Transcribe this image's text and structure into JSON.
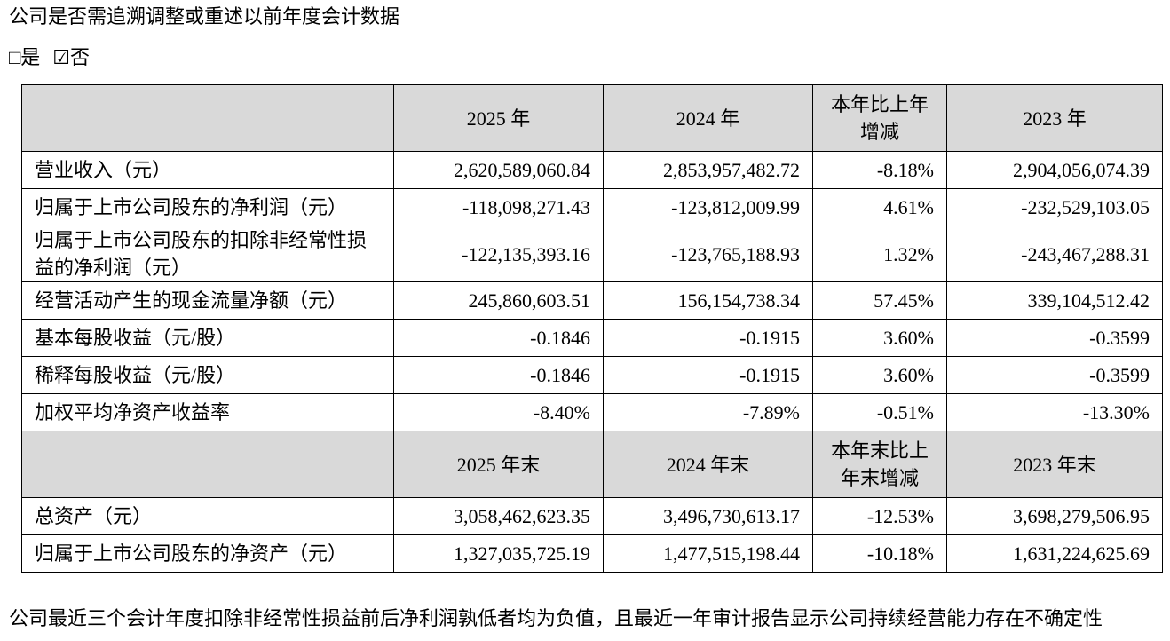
{
  "intro": "公司是否需追溯调整或重述以前年度会计数据",
  "options": [
    "□是",
    "☑否"
  ],
  "table": {
    "sections": [
      {
        "header": [
          "2025 年",
          "2024 年",
          "本年比上年增减",
          "2023 年"
        ],
        "rows": [
          {
            "label": "营业收入（元）",
            "values": [
              "2,620,589,060.84",
              "2,853,957,482.72",
              "-8.18%",
              "2,904,056,074.39"
            ]
          },
          {
            "label": "归属于上市公司股东的净利润（元）",
            "values": [
              "-118,098,271.43",
              "-123,812,009.99",
              "4.61%",
              "-232,529,103.05"
            ]
          },
          {
            "label": "归属于上市公司股东的扣除非经常性损益的净利润（元）",
            "values": [
              "-122,135,393.16",
              "-123,765,188.93",
              "1.32%",
              "-243,467,288.31"
            ]
          },
          {
            "label": "经营活动产生的现金流量净额（元）",
            "values": [
              "245,860,603.51",
              "156,154,738.34",
              "57.45%",
              "339,104,512.42"
            ]
          },
          {
            "label": "基本每股收益（元/股）",
            "values": [
              "-0.1846",
              "-0.1915",
              "3.60%",
              "-0.3599"
            ]
          },
          {
            "label": "稀释每股收益（元/股）",
            "values": [
              "-0.1846",
              "-0.1915",
              "3.60%",
              "-0.3599"
            ]
          },
          {
            "label": "加权平均净资产收益率",
            "values": [
              "-8.40%",
              "-7.89%",
              "-0.51%",
              "-13.30%"
            ]
          }
        ]
      },
      {
        "header": [
          "2025 年末",
          "2024 年末",
          "本年末比上年末增减",
          "2023 年末"
        ],
        "rows": [
          {
            "label": "总资产（元）",
            "values": [
              "3,058,462,623.35",
              "3,496,730,613.17",
              "-12.53%",
              "3,698,279,506.95"
            ]
          },
          {
            "label": "归属于上市公司股东的净资产（元）",
            "values": [
              "1,327,035,725.19",
              "1,477,515,198.44",
              "-10.18%",
              "1,631,224,625.69"
            ]
          }
        ]
      }
    ]
  },
  "footer": "公司最近三个会计年度扣除非经常性损益前后净利润孰低者均为负值，且最近一年审计报告显示公司持续经营能力存在不确定性"
}
